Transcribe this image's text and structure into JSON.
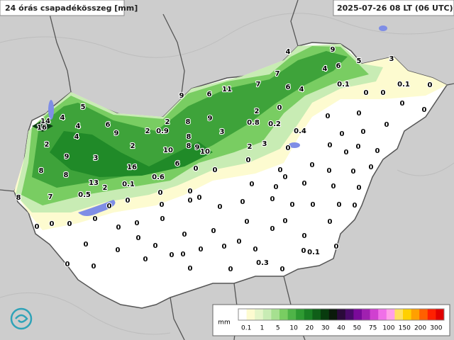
{
  "header": {
    "title": "24 órás csapadékösszeg [mm]",
    "timestamp": "2025-07-26 08 LT (06 UTC)"
  },
  "stations": [
    14,
    16,
    5,
    4,
    4,
    6,
    9,
    2,
    4,
    9,
    3,
    8,
    8,
    2,
    2,
    0.9,
    2,
    8,
    9,
    6,
    11,
    7,
    7,
    4,
    9,
    4,
    6,
    5,
    3,
    6,
    4,
    0.1,
    0.1,
    0,
    9,
    3,
    8,
    9,
    10,
    8,
    10,
    2,
    0,
    0.8,
    0.2,
    0.4,
    2,
    3,
    0,
    16,
    13,
    2,
    0.1,
    0.6,
    6,
    0,
    0,
    0,
    8,
    7,
    0.5,
    0,
    0,
    0,
    0,
    0,
    0,
    0,
    0,
    0,
    0,
    0,
    0,
    0,
    0,
    0,
    0,
    0,
    0,
    0,
    0,
    0,
    0,
    0,
    0,
    0,
    0,
    0,
    0,
    0,
    0,
    0,
    0,
    0,
    0,
    0,
    0,
    0,
    0,
    0,
    0,
    0,
    0,
    0,
    0,
    0,
    0,
    0,
    0,
    0,
    0,
    0,
    0,
    0,
    0,
    0,
    0,
    0,
    0,
    0,
    0,
    0,
    0,
    0,
    0,
    0,
    0,
    0,
    0,
    0,
    0.3,
    0,
    0.1
  ],
  "legend": {
    "unit": "mm",
    "ticks": [
      0.1,
      1,
      5,
      10,
      20,
      30,
      40,
      50,
      75,
      100,
      150,
      200,
      300
    ],
    "colors": [
      "#ffffff",
      "#fdfbd0",
      "#e4f5c8",
      "#c8ecb4",
      "#a6e090",
      "#79cd62",
      "#4fb448",
      "#2e9a32",
      "#1a7f24",
      "#0f5f18",
      "#083b0e",
      "#0a1a0a",
      "#2a0a3a",
      "#4a0a6a",
      "#7a0a9a",
      "#a020b0",
      "#d040d0",
      "#f070e8",
      "#ffa0e8",
      "#ffe060",
      "#ffd000",
      "#ffa000",
      "#ff6000",
      "#ff2000",
      "#e00000"
    ]
  }
}
